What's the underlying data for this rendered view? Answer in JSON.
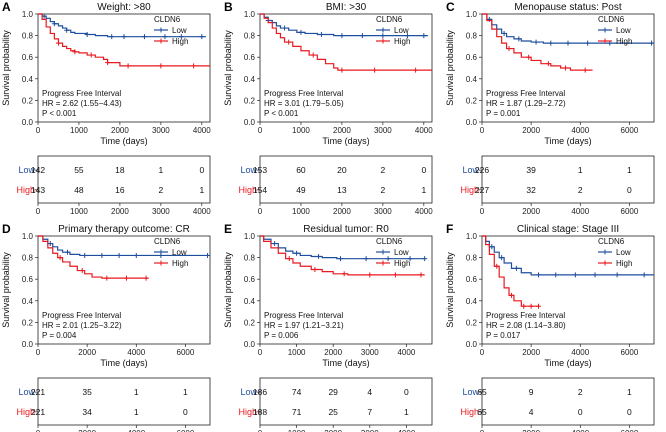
{
  "figure": {
    "colors": {
      "low": "#1f4e9e",
      "high": "#e8191f",
      "axis": "#222222"
    },
    "legend_title": "CLDN6",
    "legend_low": "Low",
    "legend_high": "High",
    "ylabel": "Survival probability",
    "xlabel": "Time (days)",
    "risk_low_label": "Low",
    "risk_high_label": "High"
  },
  "chart_data": [
    {
      "panel": "A",
      "type": "line",
      "title": "Weight: >80",
      "xlim": [
        0,
        4200
      ],
      "xticks": [
        0,
        1000,
        2000,
        3000,
        4000
      ],
      "ylim": [
        0,
        1
      ],
      "yticks": [
        "0.0",
        "0.2",
        "0.4",
        "0.6",
        "0.8",
        "1.0"
      ],
      "series": [
        {
          "name": "Low",
          "x": [
            0,
            100,
            200,
            300,
            400,
            500,
            600,
            700,
            800,
            900,
            1000,
            1200,
            1400,
            1700,
            2100,
            2500,
            3500,
            4100
          ],
          "y": [
            1,
            0.98,
            0.96,
            0.93,
            0.91,
            0.89,
            0.87,
            0.85,
            0.83,
            0.82,
            0.82,
            0.81,
            0.8,
            0.79,
            0.79,
            0.79,
            0.79,
            0.79
          ],
          "censor": [
            150,
            400,
            700,
            1200,
            1800,
            2100,
            2600,
            3100,
            3500,
            4000
          ]
        },
        {
          "name": "High",
          "x": [
            0,
            100,
            200,
            300,
            400,
            500,
            600,
            700,
            800,
            900,
            1000,
            1200,
            1400,
            1600,
            1700,
            2000,
            2600,
            4200
          ],
          "y": [
            1,
            0.95,
            0.88,
            0.82,
            0.77,
            0.73,
            0.7,
            0.68,
            0.66,
            0.65,
            0.64,
            0.62,
            0.6,
            0.58,
            0.55,
            0.52,
            0.52,
            0.52
          ],
          "censor": [
            500,
            900,
            1300,
            1700,
            2200,
            3000,
            3800
          ]
        }
      ],
      "annotation": [
        "Progress Free Interval",
        "HR = 2.62 (1.55−4.43)",
        "P < 0.001"
      ],
      "risk_times": [
        0,
        1000,
        2000,
        3000,
        4000
      ],
      "risk_low": [
        "142",
        "55",
        "18",
        "1",
        "0"
      ],
      "risk_high": [
        "143",
        "48",
        "16",
        "2",
        "1"
      ]
    },
    {
      "panel": "B",
      "type": "line",
      "title": "BMI: >30",
      "xlim": [
        0,
        4200
      ],
      "xticks": [
        0,
        1000,
        2000,
        3000,
        4000
      ],
      "ylim": [
        0,
        1
      ],
      "yticks": [
        "0.0",
        "0.2",
        "0.4",
        "0.6",
        "0.8",
        "1.0"
      ],
      "series": [
        {
          "name": "Low",
          "x": [
            0,
            100,
            200,
            300,
            400,
            500,
            700,
            900,
            1100,
            1400,
            1800,
            2300,
            4100
          ],
          "y": [
            1,
            0.97,
            0.94,
            0.92,
            0.89,
            0.87,
            0.85,
            0.83,
            0.82,
            0.81,
            0.8,
            0.8,
            0.8
          ],
          "censor": [
            200,
            600,
            1000,
            1500,
            2000,
            2500,
            3000,
            3600,
            4000
          ]
        },
        {
          "name": "High",
          "x": [
            0,
            100,
            200,
            300,
            400,
            500,
            600,
            800,
            1000,
            1200,
            1400,
            1600,
            1800,
            1900,
            2200,
            4200
          ],
          "y": [
            1,
            0.96,
            0.92,
            0.87,
            0.82,
            0.78,
            0.74,
            0.7,
            0.66,
            0.62,
            0.58,
            0.54,
            0.5,
            0.48,
            0.48,
            0.48
          ],
          "censor": [
            700,
            1300,
            2000,
            2800,
            3800
          ]
        }
      ],
      "annotation": [
        "Progress Free Interval",
        "HR = 3.01 (1.79−5.05)",
        "P < 0.001"
      ],
      "risk_times": [
        0,
        1000,
        2000,
        3000,
        4000
      ],
      "risk_low": [
        "153",
        "60",
        "20",
        "2",
        "0"
      ],
      "risk_high": [
        "154",
        "49",
        "13",
        "2",
        "1"
      ]
    },
    {
      "panel": "C",
      "type": "line",
      "title": "Menopause status: Post",
      "xlim": [
        0,
        7000
      ],
      "xticks": [
        0,
        2000,
        4000,
        6000
      ],
      "ylim": [
        0,
        1
      ],
      "yticks": [
        "0.0",
        "0.2",
        "0.4",
        "0.6",
        "0.8",
        "1.0"
      ],
      "series": [
        {
          "name": "Low",
          "x": [
            0,
            200,
            400,
            600,
            800,
            1000,
            1300,
            1600,
            2000,
            2500,
            3000,
            4000,
            7000
          ],
          "y": [
            1,
            0.95,
            0.9,
            0.86,
            0.82,
            0.79,
            0.77,
            0.75,
            0.74,
            0.73,
            0.73,
            0.73,
            0.73
          ],
          "censor": [
            300,
            900,
            1500,
            2200,
            2800,
            3500,
            4300,
            5200,
            6900
          ]
        },
        {
          "name": "High",
          "x": [
            0,
            200,
            400,
            600,
            800,
            1000,
            1300,
            1600,
            2000,
            2400,
            2800,
            3200,
            3600,
            4500
          ],
          "y": [
            1,
            0.94,
            0.86,
            0.79,
            0.73,
            0.68,
            0.64,
            0.6,
            0.57,
            0.54,
            0.52,
            0.5,
            0.48,
            0.48
          ],
          "censor": [
            1100,
            1900,
            2700,
            3400,
            4200
          ]
        }
      ],
      "annotation": [
        "Progress Free Interval",
        "HR = 1.87 (1.29−2.72)",
        "P = 0.001"
      ],
      "risk_times": [
        0,
        2000,
        4000,
        6000
      ],
      "risk_low": [
        "226",
        "39",
        "1",
        "1"
      ],
      "risk_high": [
        "227",
        "32",
        "2",
        "0"
      ]
    },
    {
      "panel": "D",
      "type": "line",
      "title": "Primary therapy outcome: CR",
      "xlim": [
        0,
        7000
      ],
      "xticks": [
        0,
        2000,
        4000,
        6000
      ],
      "ylim": [
        0,
        1
      ],
      "yticks": [
        "0.0",
        "0.2",
        "0.4",
        "0.6",
        "0.8",
        "1.0"
      ],
      "series": [
        {
          "name": "Low",
          "x": [
            0,
            200,
            400,
            600,
            800,
            1000,
            1300,
            1700,
            2200,
            3000,
            7000
          ],
          "y": [
            1,
            0.97,
            0.93,
            0.9,
            0.87,
            0.85,
            0.83,
            0.82,
            0.82,
            0.82,
            0.82
          ],
          "censor": [
            500,
            1200,
            1900,
            2600,
            3300,
            4000,
            5000,
            6900
          ]
        },
        {
          "name": "High",
          "x": [
            0,
            200,
            400,
            600,
            800,
            1000,
            1300,
            1600,
            1900,
            2200,
            2600,
            4500
          ],
          "y": [
            1,
            0.95,
            0.89,
            0.84,
            0.8,
            0.76,
            0.72,
            0.68,
            0.65,
            0.62,
            0.61,
            0.61
          ],
          "censor": [
            900,
            1800,
            2800,
            3600,
            4400
          ]
        }
      ],
      "annotation": [
        "Progress Free Interval",
        "HR = 2.01 (1.25−3.22)",
        "P = 0.004"
      ],
      "risk_times": [
        0,
        2000,
        4000,
        6000
      ],
      "risk_low": [
        "221",
        "35",
        "1",
        "1"
      ],
      "risk_high": [
        "221",
        "34",
        "1",
        "0"
      ]
    },
    {
      "panel": "E",
      "type": "line",
      "title": "Residual tumor: R0",
      "xlim": [
        0,
        4700
      ],
      "xticks": [
        0,
        1000,
        2000,
        3000,
        4000
      ],
      "ylim": [
        0,
        1
      ],
      "yticks": [
        "0.0",
        "0.2",
        "0.4",
        "0.6",
        "0.8",
        "1.0"
      ],
      "series": [
        {
          "name": "Low",
          "x": [
            0,
            100,
            300,
            500,
            700,
            900,
            1100,
            1400,
            1700,
            2100,
            2600,
            3200,
            4500
          ],
          "y": [
            1,
            0.97,
            0.93,
            0.89,
            0.86,
            0.84,
            0.82,
            0.81,
            0.8,
            0.79,
            0.79,
            0.79,
            0.79
          ],
          "censor": [
            400,
            1000,
            1600,
            2200,
            2900,
            3500,
            4100,
            4500
          ]
        },
        {
          "name": "High",
          "x": [
            0,
            100,
            300,
            500,
            700,
            900,
            1100,
            1400,
            1700,
            2000,
            2400,
            2800,
            4500
          ],
          "y": [
            1,
            0.95,
            0.89,
            0.84,
            0.79,
            0.75,
            0.72,
            0.69,
            0.67,
            0.65,
            0.64,
            0.64,
            0.64
          ],
          "censor": [
            800,
            1500,
            2300,
            3000,
            3700,
            4400
          ]
        }
      ],
      "annotation": [
        "Progress Free Interval",
        "HR = 1.97 (1.21−3.21)",
        "P = 0.006"
      ],
      "risk_times": [
        0,
        1000,
        2000,
        3000,
        4000
      ],
      "risk_low": [
        "186",
        "74",
        "29",
        "4",
        "0"
      ],
      "risk_high": [
        "188",
        "71",
        "25",
        "7",
        "1"
      ]
    },
    {
      "panel": "F",
      "type": "line",
      "title": "Clinical stage: Stage III",
      "xlim": [
        0,
        7000
      ],
      "xticks": [
        0,
        2000,
        4000,
        6000
      ],
      "ylim": [
        0,
        1
      ],
      "yticks": [
        "0.0",
        "0.2",
        "0.4",
        "0.6",
        "0.8",
        "1.0"
      ],
      "series": [
        {
          "name": "Low",
          "x": [
            0,
            150,
            300,
            500,
            700,
            900,
            1200,
            1600,
            2000,
            7000
          ],
          "y": [
            1,
            0.95,
            0.9,
            0.85,
            0.8,
            0.75,
            0.7,
            0.66,
            0.64,
            0.64
          ],
          "censor": [
            400,
            800,
            1400,
            2300,
            3000,
            3800,
            4600,
            5500,
            6600
          ]
        },
        {
          "name": "High",
          "x": [
            0,
            150,
            300,
            500,
            700,
            900,
            1100,
            1300,
            1600,
            2300
          ],
          "y": [
            1,
            0.92,
            0.83,
            0.72,
            0.62,
            0.52,
            0.45,
            0.4,
            0.35,
            0.35
          ],
          "censor": [
            600,
            1200,
            1700,
            2000,
            2300
          ]
        }
      ],
      "annotation": [
        "Progress Free Interval",
        "HR = 2.08 (1.14−3.80)",
        "P = 0.017"
      ],
      "risk_times": [
        0,
        2000,
        4000,
        6000
      ],
      "risk_low": [
        "65",
        "9",
        "2",
        "1"
      ],
      "risk_high": [
        "65",
        "4",
        "0",
        "0"
      ]
    }
  ]
}
